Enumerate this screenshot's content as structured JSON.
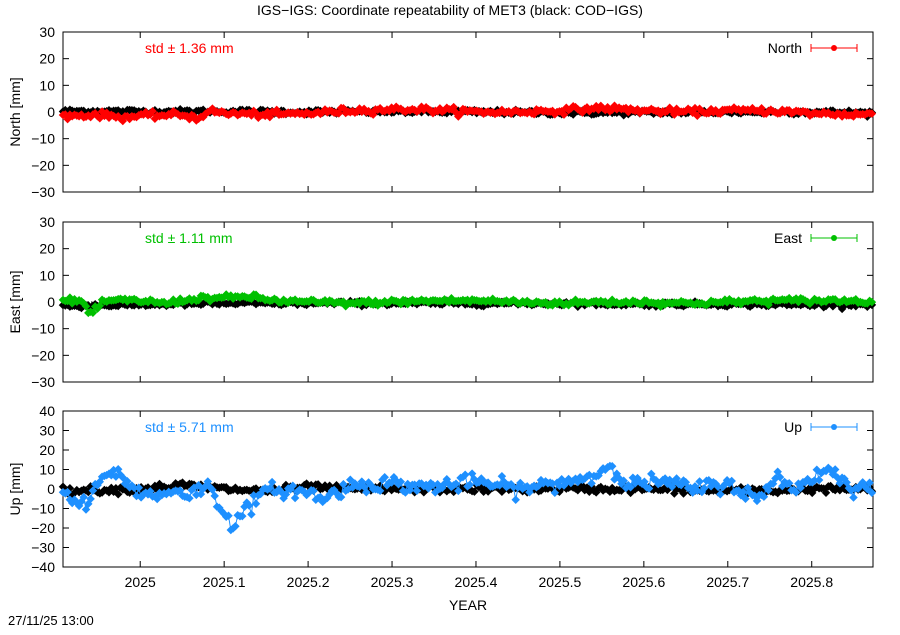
{
  "chart_data": {
    "type": "scatter",
    "title": "IGS−IGS: Coordinate repeatability of MET3 (black: COD−IGS)",
    "xlabel": "YEAR",
    "xlim": [
      2024.908,
      2025.873
    ],
    "xticks": [
      2025,
      2025.1,
      2025.2,
      2025.3,
      2025.4,
      2025.5,
      2025.6,
      2025.7,
      2025.8
    ],
    "xtick_labels": [
      "2025",
      "2025.1",
      "2025.2",
      "2025.3",
      "2025.4",
      "2025.5",
      "2025.6",
      "2025.7",
      "2025.8"
    ],
    "grid": false,
    "legend": "top-right",
    "epoch_step_days": 1,
    "panels": [
      {
        "id": "north",
        "ylabel": "North [mm]",
        "ylim": [
          -30,
          30
        ],
        "yticks": [
          -30,
          -20,
          -10,
          0,
          10,
          20,
          30
        ],
        "legend_label": "North",
        "std_label": "std ± 1.36 mm",
        "color": "#ff0000",
        "series": [
          {
            "name": "IGS",
            "color": "#ff0000",
            "anchors": [
              [
                2024.908,
                -1.5
              ],
              [
                2024.95,
                -1
              ],
              [
                2024.98,
                -2
              ],
              [
                2025.0,
                -1.5
              ],
              [
                2025.05,
                -1
              ],
              [
                2025.07,
                -2.5
              ],
              [
                2025.08,
                0.5
              ],
              [
                2025.1,
                -0.5
              ],
              [
                2025.15,
                -1
              ],
              [
                2025.2,
                -0.5
              ],
              [
                2025.25,
                0.5
              ],
              [
                2025.3,
                1
              ],
              [
                2025.33,
                1
              ],
              [
                2025.37,
                0.5
              ],
              [
                2025.4,
                0
              ],
              [
                2025.45,
                0
              ],
              [
                2025.5,
                0.5
              ],
              [
                2025.55,
                1.5
              ],
              [
                2025.6,
                0.5
              ],
              [
                2025.65,
                0
              ],
              [
                2025.7,
                0.5
              ],
              [
                2025.75,
                0.5
              ],
              [
                2025.8,
                -0.5
              ],
              [
                2025.85,
                -1
              ],
              [
                2025.873,
                -0.5
              ]
            ],
            "noise": 1.0
          },
          {
            "name": "COD-IGS",
            "color": "#000000",
            "anchors": [
              [
                2024.908,
                0.3
              ],
              [
                2025.0,
                0.2
              ],
              [
                2025.1,
                0.2
              ],
              [
                2025.2,
                0
              ],
              [
                2025.3,
                0.2
              ],
              [
                2025.4,
                0
              ],
              [
                2025.5,
                -0.3
              ],
              [
                2025.6,
                -0.2
              ],
              [
                2025.7,
                0
              ],
              [
                2025.8,
                0
              ],
              [
                2025.873,
                -0.3
              ]
            ],
            "noise": 0.7
          }
        ]
      },
      {
        "id": "east",
        "ylabel": "East [mm]",
        "ylim": [
          -30,
          30
        ],
        "yticks": [
          -30,
          -20,
          -10,
          0,
          10,
          20,
          30
        ],
        "legend_label": "East",
        "std_label": "std ± 1.11 mm",
        "color": "#00c000",
        "series": [
          {
            "name": "IGS",
            "color": "#00c000",
            "anchors": [
              [
                2024.908,
                0.3
              ],
              [
                2024.93,
                0.5
              ],
              [
                2024.94,
                -4.5
              ],
              [
                2024.96,
                0.5
              ],
              [
                2025.0,
                0.5
              ],
              [
                2025.03,
                -0.5
              ],
              [
                2025.07,
                1.5
              ],
              [
                2025.1,
                1.5
              ],
              [
                2025.13,
                2
              ],
              [
                2025.16,
                0.5
              ],
              [
                2025.2,
                0
              ],
              [
                2025.25,
                -0.5
              ],
              [
                2025.3,
                0
              ],
              [
                2025.35,
                0.5
              ],
              [
                2025.4,
                0.5
              ],
              [
                2025.45,
                0
              ],
              [
                2025.5,
                -0.5
              ],
              [
                2025.55,
                0
              ],
              [
                2025.6,
                0
              ],
              [
                2025.65,
                -0.5
              ],
              [
                2025.7,
                0
              ],
              [
                2025.75,
                0.5
              ],
              [
                2025.8,
                0.5
              ],
              [
                2025.85,
                0.5
              ],
              [
                2025.873,
                0.3
              ]
            ],
            "noise": 0.9
          },
          {
            "name": "COD-IGS",
            "color": "#000000",
            "anchors": [
              [
                2024.908,
                -1.5
              ],
              [
                2025.0,
                -1
              ],
              [
                2025.1,
                -0.5
              ],
              [
                2025.2,
                -0.5
              ],
              [
                2025.3,
                -0.5
              ],
              [
                2025.4,
                -0.5
              ],
              [
                2025.5,
                -0.5
              ],
              [
                2025.6,
                -0.8
              ],
              [
                2025.7,
                -0.8
              ],
              [
                2025.8,
                -1
              ],
              [
                2025.873,
                -0.8
              ]
            ],
            "noise": 0.7
          }
        ]
      },
      {
        "id": "up",
        "ylabel": "Up [mm]",
        "ylim": [
          -40,
          40
        ],
        "yticks": [
          -40,
          -30,
          -20,
          -10,
          0,
          10,
          20,
          30,
          40
        ],
        "legend_label": "Up",
        "std_label": "std ± 5.71 mm",
        "color": "#1e90ff",
        "series": [
          {
            "name": "IGS",
            "color": "#1e90ff",
            "anchors": [
              [
                2024.908,
                -2
              ],
              [
                2024.92,
                -6
              ],
              [
                2024.935,
                -9
              ],
              [
                2024.95,
                2
              ],
              [
                2024.965,
                10
              ],
              [
                2024.98,
                5
              ],
              [
                2025.0,
                -2
              ],
              [
                2025.02,
                -4
              ],
              [
                2025.04,
                0
              ],
              [
                2025.06,
                -3
              ],
              [
                2025.08,
                2
              ],
              [
                2025.1,
                -12
              ],
              [
                2025.11,
                -18
              ],
              [
                2025.125,
                -12
              ],
              [
                2025.14,
                -4
              ],
              [
                2025.16,
                0
              ],
              [
                2025.2,
                -2
              ],
              [
                2025.22,
                -5
              ],
              [
                2025.25,
                2
              ],
              [
                2025.3,
                3
              ],
              [
                2025.33,
                1
              ],
              [
                2025.37,
                2
              ],
              [
                2025.4,
                4
              ],
              [
                2025.45,
                0
              ],
              [
                2025.5,
                3
              ],
              [
                2025.55,
                8
              ],
              [
                2025.56,
                14
              ],
              [
                2025.58,
                2
              ],
              [
                2025.62,
                4
              ],
              [
                2025.66,
                0
              ],
              [
                2025.7,
                3
              ],
              [
                2025.74,
                -6
              ],
              [
                2025.76,
                8
              ],
              [
                2025.78,
                -1
              ],
              [
                2025.8,
                6
              ],
              [
                2025.82,
                10
              ],
              [
                2025.85,
                1
              ],
              [
                2025.873,
                1
              ]
            ],
            "noise": 3.2
          },
          {
            "name": "COD-IGS",
            "color": "#000000",
            "anchors": [
              [
                2024.908,
                -1
              ],
              [
                2025.0,
                0
              ],
              [
                2025.05,
                2
              ],
              [
                2025.1,
                0
              ],
              [
                2025.15,
                -1
              ],
              [
                2025.2,
                1
              ],
              [
                2025.25,
                0
              ],
              [
                2025.3,
                0
              ],
              [
                2025.4,
                0
              ],
              [
                2025.5,
                0
              ],
              [
                2025.6,
                0
              ],
              [
                2025.7,
                -1
              ],
              [
                2025.75,
                -1
              ],
              [
                2025.8,
                0
              ],
              [
                2025.873,
                0
              ]
            ],
            "noise": 1.5
          }
        ]
      }
    ]
  },
  "footer": {
    "timestamp": "27/11/25 13:00"
  }
}
